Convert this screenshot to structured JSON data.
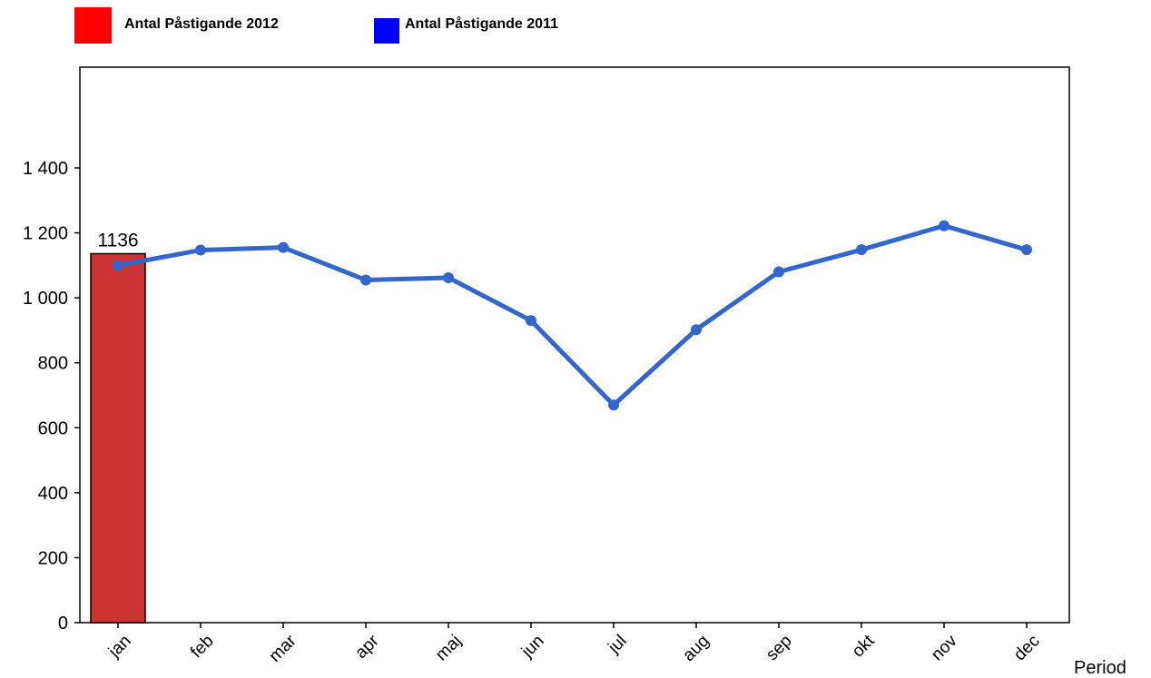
{
  "legend": {
    "items": [
      {
        "label": "Antal Påstigande 2012",
        "color": "#ff0000"
      },
      {
        "label": "Antal Påstigande 2011",
        "color": "#0000ff"
      }
    ]
  },
  "chart_data": {
    "type": "bar",
    "categories": [
      "jan",
      "feb",
      "mar",
      "apr",
      "maj",
      "jun",
      "jul",
      "aug",
      "sep",
      "okt",
      "nov",
      "dec"
    ],
    "series": [
      {
        "name": "Antal Påstigande 2012",
        "type": "bar",
        "color": "#cc3333",
        "values": [
          1136,
          null,
          null,
          null,
          null,
          null,
          null,
          null,
          null,
          null,
          null,
          null
        ],
        "data_labels": [
          "1136"
        ]
      },
      {
        "name": "Antal Påstigande 2011",
        "type": "line",
        "color": "#3366cc",
        "values": [
          1100,
          1147,
          1155,
          1055,
          1062,
          930,
          670,
          902,
          1080,
          1148,
          1222,
          1148
        ]
      }
    ],
    "xlabel": "Period",
    "ylabel": "",
    "ylim": [
      0,
      1400
    ],
    "yticks": [
      0,
      200,
      400,
      600,
      800,
      1000,
      1200,
      1400
    ],
    "ytick_labels": [
      "0",
      "200",
      "400",
      "600",
      "800",
      "1 000",
      "1 200",
      "1 400"
    ],
    "grid": false
  }
}
